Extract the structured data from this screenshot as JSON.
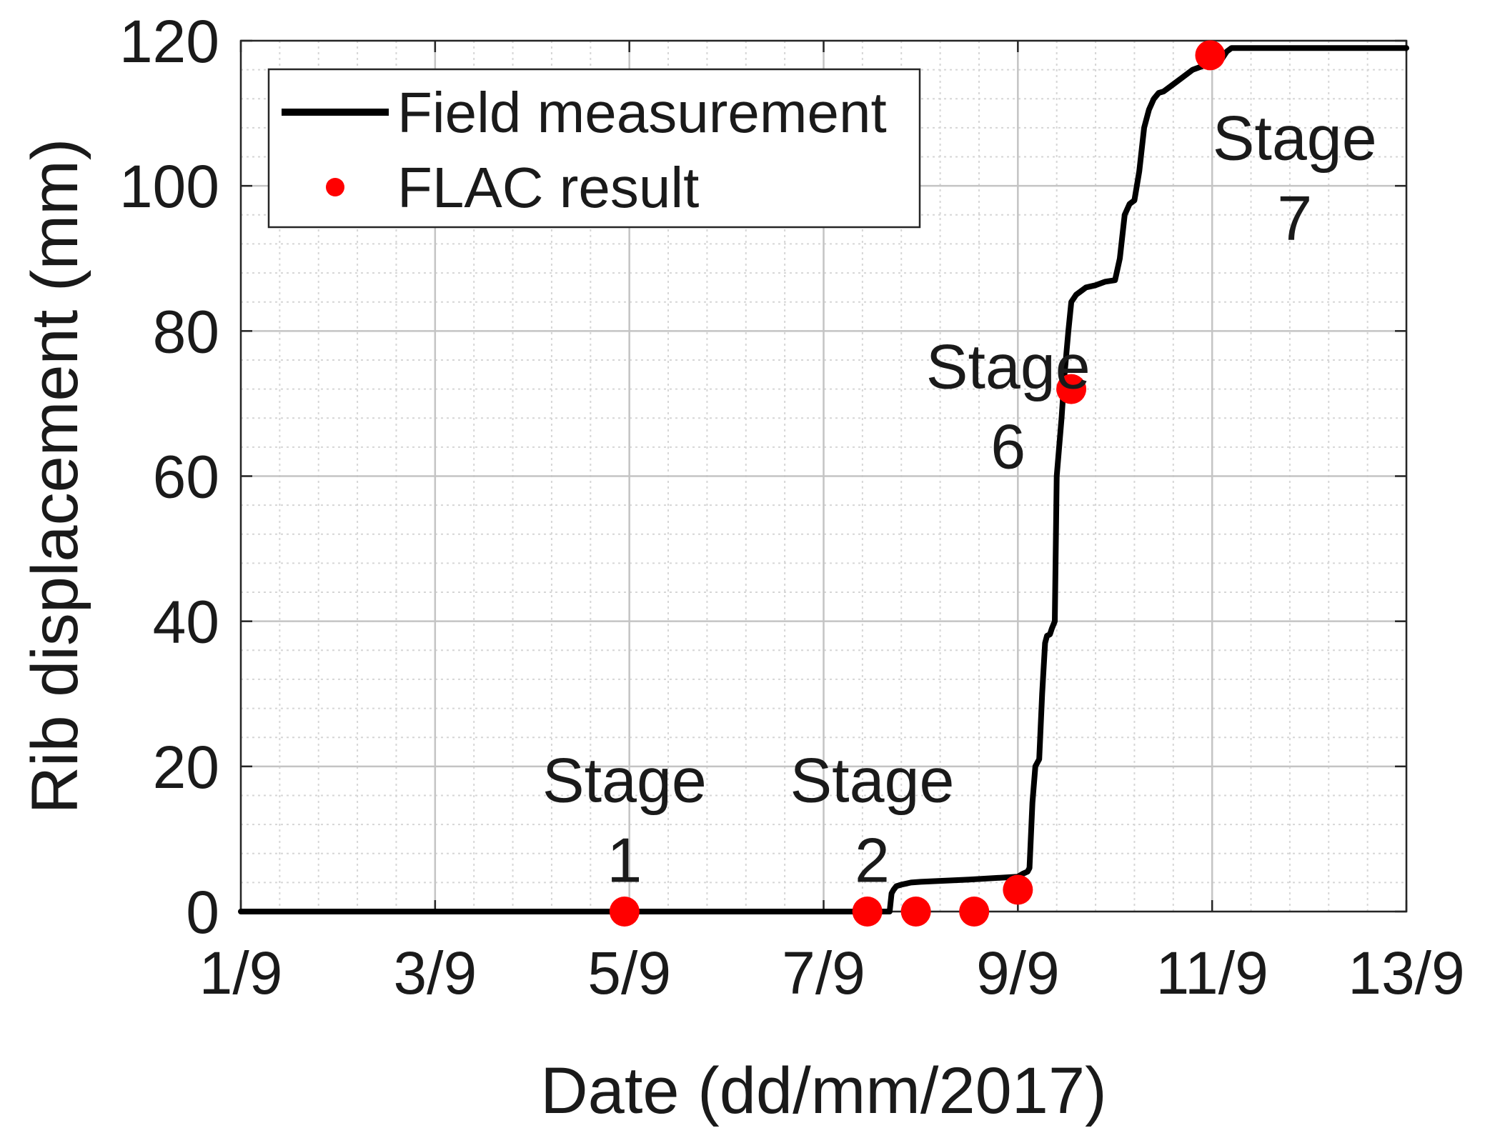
{
  "chart_data": {
    "type": "line",
    "title": "",
    "xlabel": "Date (dd/mm/2017)",
    "ylabel": "Rib displacement (mm)",
    "xlim": [
      1,
      13
    ],
    "ylim": [
      0,
      120
    ],
    "grid": true,
    "legend_position": "top-left",
    "x_tick_values": [
      1,
      3,
      5,
      7,
      9,
      11,
      13
    ],
    "x_tick_labels": [
      "1/9",
      "3/9",
      "5/9",
      "7/9",
      "9/9",
      "11/9",
      "13/9"
    ],
    "y_tick_values": [
      0,
      20,
      40,
      60,
      80,
      100,
      120
    ],
    "y_tick_labels": [
      "0",
      "20",
      "40",
      "60",
      "80",
      "100",
      "120"
    ],
    "series": [
      {
        "name": "Field measurement",
        "kind": "line",
        "color": "#000000",
        "x": [
          1.0,
          7.0,
          7.68,
          7.7,
          7.72,
          7.75,
          7.8,
          7.9,
          8.0,
          8.5,
          9.0,
          9.05,
          9.1,
          9.12,
          9.15,
          9.18,
          9.22,
          9.25,
          9.28,
          9.3,
          9.33,
          9.35,
          9.38,
          9.4,
          9.45,
          9.48,
          9.5,
          9.52,
          9.55,
          9.6,
          9.65,
          9.7,
          9.8,
          9.9,
          10.0,
          10.05,
          10.1,
          10.15,
          10.2,
          10.25,
          10.3,
          10.35,
          10.4,
          10.45,
          10.5,
          10.6,
          10.7,
          10.8,
          10.9,
          11.0,
          11.1,
          11.15,
          11.2,
          13.0
        ],
        "y": [
          0,
          0,
          0,
          2.5,
          3.0,
          3.5,
          3.7,
          4.0,
          4.1,
          4.4,
          4.8,
          5.2,
          5.5,
          6.0,
          15.0,
          20.0,
          21.0,
          30.0,
          37.0,
          38.0,
          38.2,
          39.0,
          40.0,
          60.0,
          68.0,
          74.0,
          77.0,
          80.0,
          84.0,
          85.0,
          85.5,
          86.0,
          86.3,
          86.8,
          87.0,
          90.0,
          96.0,
          97.5,
          98.0,
          102.0,
          108.0,
          110.5,
          112.0,
          112.8,
          113.0,
          114.0,
          115.0,
          116.0,
          116.5,
          117.0,
          117.5,
          118.5,
          119.0,
          119.0
        ]
      },
      {
        "name": "FLAC result",
        "kind": "scatter",
        "color": "#ff0000",
        "x": [
          4.95,
          7.45,
          7.95,
          8.55,
          9.0,
          9.55,
          10.98
        ],
        "y": [
          0,
          0,
          0,
          0,
          3.0,
          72.0,
          118.0
        ]
      }
    ],
    "annotations": [
      {
        "lines": [
          "Stage",
          "1"
        ],
        "x": 4.95,
        "y_top": 22.0
      },
      {
        "lines": [
          "Stage",
          "2"
        ],
        "x": 7.5,
        "y_top": 22.0
      },
      {
        "lines": [
          "Stage",
          "6"
        ],
        "x": 8.9,
        "y_top": 79.0
      },
      {
        "lines": [
          "Stage",
          "7"
        ],
        "x": 11.85,
        "y_top": 110.5
      }
    ]
  }
}
